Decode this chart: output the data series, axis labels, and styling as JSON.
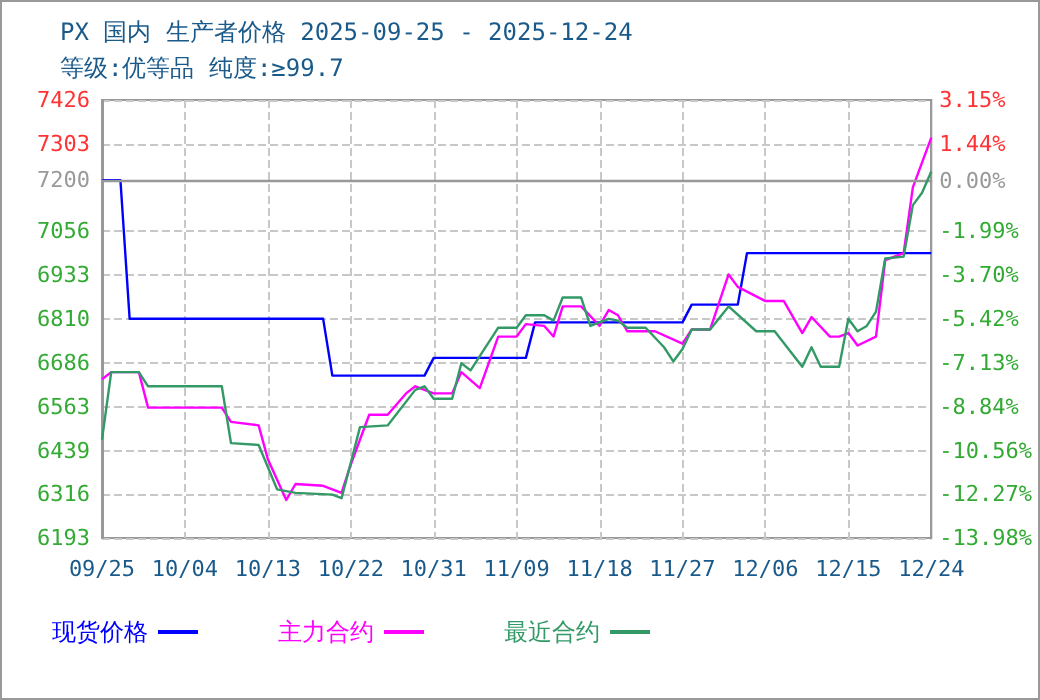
{
  "chart_data": {
    "type": "line",
    "title": "PX 国内 生产者价格 2025-09-25 - 2025-12-24",
    "subtitle": "等级:优等品 纯度:≥99.7",
    "xlim": [
      "2025-09-25",
      "2025-12-24"
    ],
    "xticks": [
      {
        "value": "2025-09-25",
        "label": "09/25"
      },
      {
        "value": "2025-10-04",
        "label": "10/04"
      },
      {
        "value": "2025-10-13",
        "label": "10/13"
      },
      {
        "value": "2025-10-22",
        "label": "10/22"
      },
      {
        "value": "2025-10-31",
        "label": "10/31"
      },
      {
        "value": "2025-11-09",
        "label": "11/09"
      },
      {
        "value": "2025-11-18",
        "label": "11/18"
      },
      {
        "value": "2025-11-27",
        "label": "11/27"
      },
      {
        "value": "2025-12-06",
        "label": "12/06"
      },
      {
        "value": "2025-12-15",
        "label": "12/15"
      },
      {
        "value": "2025-12-24",
        "label": "12/24"
      }
    ],
    "ylim": [
      6193,
      7426
    ],
    "yticks": [
      7426,
      7303,
      7200,
      7056,
      6933,
      6810,
      6686,
      6563,
      6439,
      6316,
      6193
    ],
    "y2lim": [
      -13.98,
      3.15
    ],
    "y2ticks": [
      {
        "value": 3.15,
        "label": "3.15%"
      },
      {
        "value": 1.44,
        "label": "1.44%"
      },
      {
        "value": 0,
        "label": "0.00%"
      },
      {
        "value": -1.99,
        "label": "-1.99%"
      },
      {
        "value": -3.7,
        "label": "-3.70%"
      },
      {
        "value": -5.42,
        "label": "-5.42%"
      },
      {
        "value": -7.13,
        "label": "-7.13%"
      },
      {
        "value": -8.84,
        "label": "-8.84%"
      },
      {
        "value": -10.56,
        "label": "-10.56%"
      },
      {
        "value": -12.27,
        "label": "-12.27%"
      },
      {
        "value": -13.98,
        "label": "-13.98%"
      }
    ],
    "ref_lines": [
      {
        "axis": "y",
        "value": 7200,
        "color": "#999999"
      }
    ],
    "grid": true,
    "legend": "bottom",
    "marker": "none",
    "line_style": "solid",
    "series": [
      {
        "name": "现货价格",
        "color": "#0000ff",
        "x": [
          "2025-09-25",
          "2025-09-27",
          "2025-09-28",
          "2025-10-19",
          "2025-10-20",
          "2025-10-30",
          "2025-10-31",
          "2025-11-10",
          "2025-11-11",
          "2025-11-27",
          "2025-11-28",
          "2025-12-03",
          "2025-12-04",
          "2025-12-24"
        ],
        "values": [
          7200,
          7200,
          6810,
          6810,
          6650,
          6650,
          6700,
          6700,
          6800,
          6800,
          6850,
          6850,
          6995,
          6995
        ]
      },
      {
        "name": "主力合约",
        "color": "#ff00ff",
        "x": [
          "2025-09-25",
          "2025-09-26",
          "2025-09-29",
          "2025-09-30",
          "2025-10-08",
          "2025-10-09",
          "2025-10-12",
          "2025-10-13",
          "2025-10-15",
          "2025-10-16",
          "2025-10-19",
          "2025-10-21",
          "2025-10-22",
          "2025-10-24",
          "2025-10-26",
          "2025-10-28",
          "2025-10-29",
          "2025-10-31",
          "2025-11-02",
          "2025-11-03",
          "2025-11-05",
          "2025-11-07",
          "2025-11-09",
          "2025-11-10",
          "2025-11-12",
          "2025-11-13",
          "2025-11-14",
          "2025-11-16",
          "2025-11-18",
          "2025-11-19",
          "2025-11-20",
          "2025-11-21",
          "2025-11-24",
          "2025-11-27",
          "2025-11-28",
          "2025-11-30",
          "2025-12-02",
          "2025-12-03",
          "2025-12-06",
          "2025-12-08",
          "2025-12-10",
          "2025-12-11",
          "2025-12-13",
          "2025-12-14",
          "2025-12-15",
          "2025-12-16",
          "2025-12-18",
          "2025-12-19",
          "2025-12-20",
          "2025-12-21",
          "2025-12-22",
          "2025-12-24"
        ],
        "values": [
          6640,
          6660,
          6660,
          6560,
          6560,
          6520,
          6510,
          6415,
          6300,
          6345,
          6340,
          6320,
          6400,
          6540,
          6540,
          6600,
          6620,
          6600,
          6600,
          6660,
          6615,
          6760,
          6760,
          6795,
          6790,
          6760,
          6845,
          6845,
          6790,
          6835,
          6820,
          6775,
          6775,
          6740,
          6780,
          6780,
          6935,
          6900,
          6860,
          6860,
          6770,
          6815,
          6760,
          6760,
          6770,
          6735,
          6760,
          6975,
          6985,
          6995,
          7180,
          7320
        ]
      },
      {
        "name": "最近合约",
        "color": "#339966",
        "x": [
          "2025-09-25",
          "2025-09-26",
          "2025-09-29",
          "2025-09-30",
          "2025-10-08",
          "2025-10-09",
          "2025-10-12",
          "2025-10-14",
          "2025-10-16",
          "2025-10-20",
          "2025-10-21",
          "2025-10-22",
          "2025-10-23",
          "2025-10-26",
          "2025-10-29",
          "2025-10-30",
          "2025-10-31",
          "2025-11-02",
          "2025-11-03",
          "2025-11-04",
          "2025-11-07",
          "2025-11-09",
          "2025-11-10",
          "2025-11-12",
          "2025-11-13",
          "2025-11-14",
          "2025-11-16",
          "2025-11-17",
          "2025-11-19",
          "2025-11-20",
          "2025-11-21",
          "2025-11-23",
          "2025-11-25",
          "2025-11-26",
          "2025-11-27",
          "2025-11-28",
          "2025-11-30",
          "2025-12-02",
          "2025-12-05",
          "2025-12-07",
          "2025-12-10",
          "2025-12-11",
          "2025-12-12",
          "2025-12-14",
          "2025-12-15",
          "2025-12-16",
          "2025-12-17",
          "2025-12-18",
          "2025-12-19",
          "2025-12-21",
          "2025-12-22",
          "2025-12-23",
          "2025-12-24"
        ],
        "values": [
          6470,
          6660,
          6660,
          6620,
          6620,
          6460,
          6455,
          6330,
          6320,
          6315,
          6305,
          6405,
          6505,
          6510,
          6610,
          6620,
          6585,
          6585,
          6685,
          6665,
          6785,
          6785,
          6820,
          6820,
          6805,
          6870,
          6870,
          6790,
          6810,
          6805,
          6785,
          6785,
          6730,
          6690,
          6725,
          6780,
          6780,
          6845,
          6775,
          6775,
          6675,
          6730,
          6675,
          6675,
          6810,
          6775,
          6790,
          6830,
          6980,
          6985,
          7130,
          7165,
          7225
        ]
      }
    ]
  }
}
